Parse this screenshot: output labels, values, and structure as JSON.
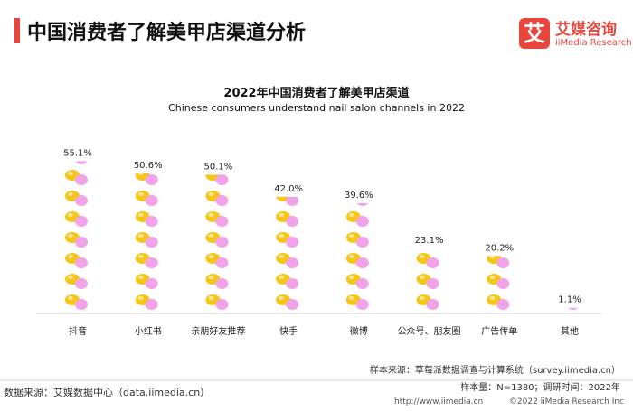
{
  "header": {
    "title": "中国消费者了解美甲店渠道分析",
    "logo_mark": "艾",
    "logo_cn": "艾媒咨询",
    "logo_en": "iiMedia Research"
  },
  "chart_data": {
    "type": "bar",
    "title": "2022年中国消费者了解美甲店渠道",
    "subtitle": "Chinese consumers understand nail salon channels in 2022",
    "categories": [
      "抖音",
      "小红书",
      "亲朋好友推荐",
      "快手",
      "微博",
      "公众号、朋友圈",
      "广告传单",
      "其他"
    ],
    "values": [
      55.1,
      50.6,
      50.1,
      42.0,
      39.6,
      23.1,
      20.2,
      1.1
    ],
    "value_labels": [
      "55.1%",
      "50.6%",
      "50.1%",
      "42.0%",
      "39.6%",
      "23.1%",
      "20.2%",
      "1.1%"
    ],
    "unit": "%",
    "ylim": [
      0,
      55.1
    ],
    "grid": false,
    "mark_style": "stacked nail-polish icons",
    "colors": {
      "gold": "#f5c518",
      "pink": "#f2a2e8"
    }
  },
  "footer": {
    "sample_source": "样本来源：草莓派数据调查与计算系统（survey.iimedia.cn）",
    "sample_size": "样本量：N=1380；调研时间：2022年",
    "data_source": "数据来源：艾媒数据中心（data.iimedia.cn）",
    "site": "http://www.iimedia.cn",
    "copyright": "©2022  iiMedia Research  Inc"
  }
}
